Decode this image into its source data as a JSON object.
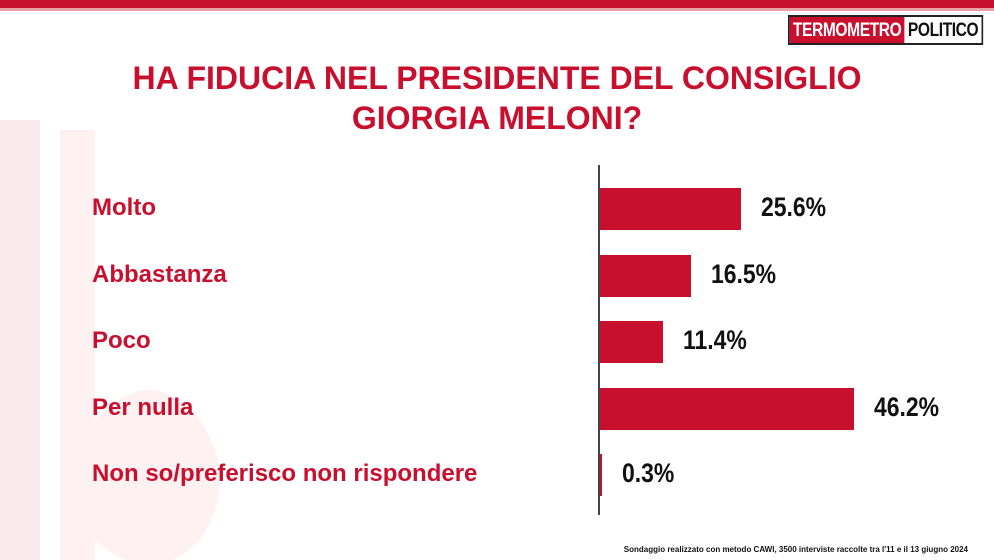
{
  "logo": {
    "part1": "TERMOMETRO",
    "part2": "POLITICO"
  },
  "chart_data": {
    "type": "bar",
    "title": "HA FIDUCIA NEL PRESIDENTE DEL CONSIGLIO GIORGIA MELONI?",
    "title_lines": [
      "HA FIDUCIA NEL PRESIDENTE DEL CONSIGLIO",
      "GIORGIA MELONI?"
    ],
    "orientation": "horizontal",
    "categories": [
      "Molto",
      "Abbastanza",
      "Poco",
      "Per nulla",
      "Non so/preferisco non rispondere"
    ],
    "values": [
      25.6,
      16.5,
      11.4,
      46.2,
      0.3
    ],
    "value_labels": [
      "25.6%",
      "16.5%",
      "11.4%",
      "46.2%",
      "0.3%"
    ],
    "unit": "%",
    "xlim": [
      0,
      46.2
    ],
    "bar_color": "#c8102e",
    "grid": false
  },
  "footnote": "Sondaggio realizzato con metodo CAWI, 3500 interviste raccolte tra l'11 e il 13 giugno 2024",
  "colors": {
    "accent": "#c8102e",
    "text": "#111111"
  }
}
